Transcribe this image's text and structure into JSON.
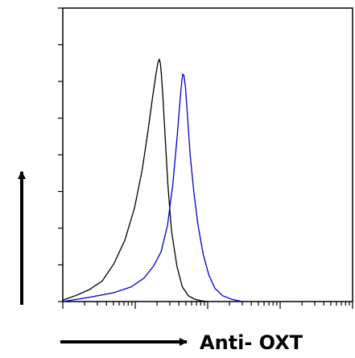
{
  "chart_data": {
    "type": "line",
    "title": "",
    "xlabel": "Anti- OXT",
    "ylabel": "",
    "x_scale": "log",
    "xlim": [
      1,
      10000
    ],
    "ylim": [
      0,
      100
    ],
    "grid": false,
    "legend": "none",
    "colors": {
      "axis": "#000000",
      "control": "#000000",
      "sample": "#0000cc"
    },
    "series": [
      {
        "x": [
          1.0,
          1.5,
          2.3,
          3.5,
          5.1,
          7.2,
          9.8,
          12.5,
          15.0,
          17.2,
          19.2,
          20.6,
          21.6,
          22.3,
          23.0,
          24.2,
          25.9,
          28.2,
          31.7,
          37.6,
          44.7,
          54.0,
          66.0,
          80.0,
          100.0
        ],
        "y": [
          0.5,
          2.0,
          4.0,
          7.0,
          13.0,
          21.0,
          32.0,
          45.0,
          58.0,
          69.0,
          77.0,
          81.5,
          82.5,
          81.0,
          77.0,
          69.0,
          56.0,
          40.0,
          24.0,
          12.0,
          5.0,
          2.0,
          0.8,
          0.3,
          0.0
        ]
      },
      {
        "x": [
          1.0,
          2.4,
          5.0,
          8.8,
          13.2,
          17.8,
          22.8,
          27.9,
          33.0,
          37.8,
          41.4,
          43.9,
          45.3,
          47.0,
          49.4,
          52.7,
          57.3,
          64.6,
          73.5,
          86.8,
          104.0,
          126.0,
          160.0,
          214.0,
          300.0
        ],
        "y": [
          0.0,
          1.5,
          3.0,
          5.0,
          8.0,
          12.0,
          17.0,
          26.0,
          40.0,
          56.0,
          68.0,
          75.0,
          77.5,
          77.0,
          73.0,
          63.0,
          50.0,
          37.0,
          26.0,
          16.0,
          9.0,
          4.5,
          2.0,
          0.8,
          0.0
        ]
      }
    ]
  }
}
